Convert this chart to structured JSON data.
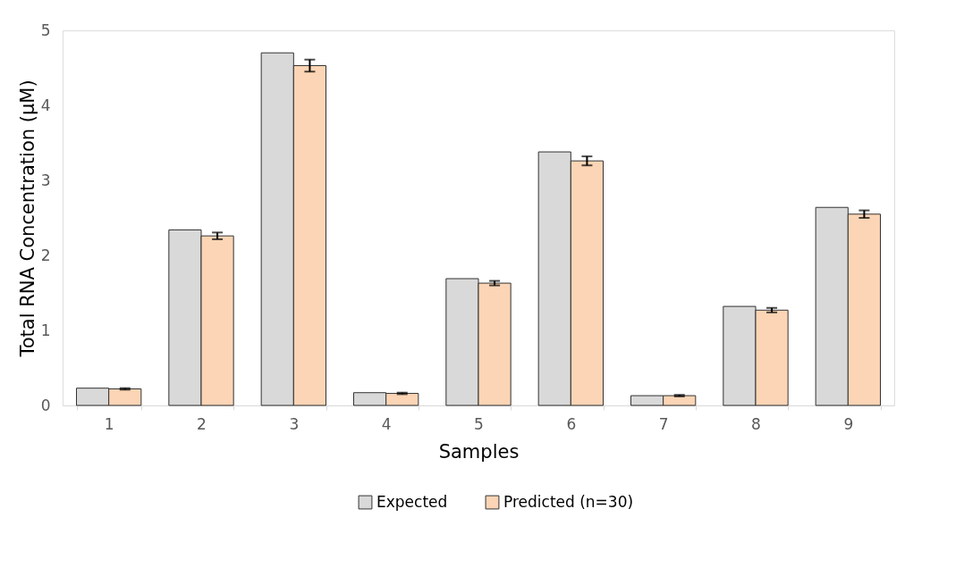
{
  "chart_data": {
    "type": "bar",
    "xlabel": "Samples",
    "ylabel": "Total RNA Concentration (µM)",
    "categories": [
      "1",
      "2",
      "3",
      "4",
      "5",
      "6",
      "7",
      "8",
      "9"
    ],
    "series": [
      {
        "name": "Expected",
        "color": "#d9d9d9",
        "values": [
          0.23,
          2.34,
          4.7,
          0.17,
          1.69,
          3.38,
          0.13,
          1.32,
          2.64
        ]
      },
      {
        "name": "Predicted (n=30)",
        "color": "#fbd5b5",
        "values": [
          0.22,
          2.26,
          4.53,
          0.16,
          1.63,
          3.26,
          0.13,
          1.27,
          2.55
        ],
        "errors": [
          0.01,
          0.045,
          0.08,
          0.01,
          0.03,
          0.06,
          0.01,
          0.03,
          0.05
        ]
      }
    ],
    "ylim": [
      0,
      5
    ],
    "yticks": [
      0,
      1,
      2,
      3,
      4,
      5
    ],
    "grid": false,
    "legend": "bottom"
  }
}
